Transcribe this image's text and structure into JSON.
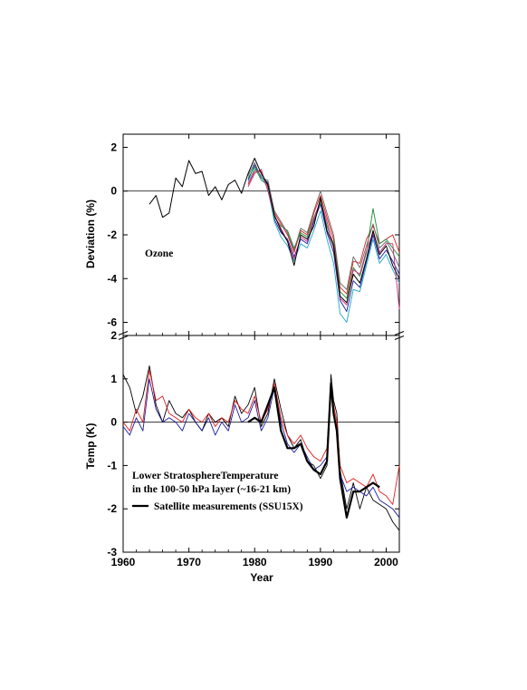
{
  "chart_data": [
    {
      "type": "line",
      "panel": "top",
      "ylabel": "Deviation (%)",
      "annotation": "Ozone",
      "xlim": [
        1960,
        2002
      ],
      "ylim": [
        -6.6,
        2.6
      ],
      "yticks": [
        2,
        0,
        -2,
        -4,
        -6
      ],
      "zero_line": true,
      "series": [
        {
          "color": "#000000",
          "width": 1.0,
          "x": [
            1964,
            1965,
            1966,
            1967,
            1968,
            1969,
            1970,
            1971,
            1972,
            1973,
            1974,
            1975,
            1976,
            1977,
            1978,
            1979,
            1980,
            1981,
            1982,
            1983,
            1984,
            1985,
            1986,
            1987,
            1988,
            1989,
            1990,
            1991,
            1992,
            1993,
            1994,
            1995,
            1996,
            1997,
            1998,
            1999,
            2000,
            2001,
            2002
          ],
          "y": [
            -0.6,
            -0.2,
            -1.2,
            -1.0,
            0.6,
            0.2,
            1.4,
            0.8,
            0.9,
            -0.2,
            0.2,
            -0.4,
            0.3,
            0.5,
            -0.1,
            0.8,
            1.5,
            0.8,
            0.3,
            -1.1,
            -1.8,
            -2.3,
            -3.4,
            -2.0,
            -2.2,
            -1.6,
            -0.3,
            -1.8,
            -2.5,
            -4.8,
            -5.1,
            -3.8,
            -4.2,
            -3.1,
            -1.8,
            -2.9,
            -2.5,
            -3.4,
            -4.0
          ]
        },
        {
          "color": "#1a1aa0",
          "width": 0.9,
          "x": [
            1979,
            1980,
            1981,
            1982,
            1983,
            1984,
            1985,
            1986,
            1987,
            1988,
            1989,
            1990,
            1991,
            1992,
            1993,
            1994,
            1995,
            1996,
            1997,
            1998,
            1999,
            2000,
            2001,
            2002
          ],
          "y": [
            0.5,
            1.2,
            0.6,
            0.4,
            -1.3,
            -1.9,
            -2.2,
            -3.0,
            -2.2,
            -2.4,
            -1.4,
            -0.6,
            -1.9,
            -2.8,
            -5.0,
            -5.5,
            -4.1,
            -4.4,
            -3.2,
            -2.0,
            -3.1,
            -2.7,
            -3.2,
            -3.8
          ]
        },
        {
          "color": "#e21b1b",
          "width": 0.9,
          "x": [
            1979,
            1980,
            1981,
            1982,
            1983,
            1984,
            1985,
            1986,
            1987,
            1988,
            1989,
            1990,
            1991,
            1992,
            1993,
            1994,
            1995,
            1996,
            1997,
            1998,
            1999,
            2000,
            2001,
            2002
          ],
          "y": [
            0.3,
            0.9,
            0.9,
            0.2,
            -1.0,
            -1.5,
            -2.0,
            -2.8,
            -1.8,
            -2.0,
            -1.0,
            -0.2,
            -1.2,
            -2.2,
            -4.4,
            -4.7,
            -3.2,
            -3.3,
            -2.2,
            -1.6,
            -2.4,
            -2.2,
            -2.0,
            -2.8
          ]
        },
        {
          "color": "#1aa6c8",
          "width": 0.9,
          "x": [
            1979,
            1980,
            1981,
            1982,
            1983,
            1984,
            1985,
            1986,
            1987,
            1988,
            1989,
            1990,
            1991,
            1992,
            1993,
            1994,
            1995,
            1996,
            1997,
            1998,
            1999,
            2000,
            2001,
            2002
          ],
          "y": [
            0.4,
            1.0,
            0.7,
            0.1,
            -1.4,
            -2.1,
            -2.5,
            -3.2,
            -2.4,
            -2.6,
            -1.8,
            -0.9,
            -2.2,
            -3.3,
            -5.6,
            -6.0,
            -4.5,
            -4.6,
            -3.4,
            -2.2,
            -3.3,
            -2.9,
            -3.6,
            -4.2
          ]
        },
        {
          "color": "#1e8c32",
          "width": 0.9,
          "x": [
            1979,
            1980,
            1981,
            1982,
            1983,
            1984,
            1985,
            1986,
            1987,
            1988,
            1989,
            1990,
            1991,
            1992,
            1993,
            1994,
            1995,
            1996,
            1997,
            1998,
            1999,
            2000,
            2001,
            2002
          ],
          "y": [
            0.6,
            1.1,
            0.5,
            0.3,
            -1.2,
            -1.6,
            -1.8,
            -2.6,
            -1.9,
            -2.1,
            -1.2,
            -0.5,
            -1.6,
            -2.4,
            -4.6,
            -4.9,
            -3.5,
            -3.9,
            -2.8,
            -0.8,
            -2.4,
            -2.2,
            -2.6,
            -3.0
          ]
        },
        {
          "color": "#d02a7a",
          "width": 0.9,
          "x": [
            1979,
            1980,
            1981,
            1982,
            1983,
            1984,
            1985,
            1986,
            1987,
            1988,
            1989,
            1990,
            1991,
            1992,
            1993,
            1994,
            1995,
            1996,
            1997,
            1998,
            1999,
            2000,
            2001,
            2002
          ],
          "y": [
            0.2,
            0.8,
            1.0,
            0.0,
            -1.1,
            -1.7,
            -2.3,
            -3.1,
            -2.1,
            -2.3,
            -1.3,
            -0.4,
            -1.4,
            -2.6,
            -4.9,
            -5.2,
            -3.6,
            -3.8,
            -2.7,
            -1.9,
            -2.8,
            -2.4,
            -2.4,
            -5.4
          ]
        },
        {
          "color": "#666666",
          "width": 0.9,
          "x": [
            1979,
            1980,
            1981,
            1982,
            1983,
            1984,
            1985,
            1986,
            1987,
            1988,
            1989,
            1990,
            1991,
            1992,
            1993,
            1994,
            1995,
            1996,
            1997,
            1998,
            1999,
            2000,
            2001,
            2002
          ],
          "y": [
            0.7,
            1.3,
            0.6,
            0.5,
            -0.9,
            -1.4,
            -1.9,
            -2.7,
            -1.7,
            -1.9,
            -0.9,
            0.0,
            -1.0,
            -2.0,
            -4.2,
            -4.5,
            -3.0,
            -3.5,
            -2.5,
            -1.5,
            -2.6,
            -2.3,
            -2.8,
            -3.5
          ]
        }
      ]
    },
    {
      "type": "line",
      "panel": "bottom",
      "xlabel": "Year",
      "ylabel": "Temp (K)",
      "annotation_lines": [
        "Lower StratosphereTemperature",
        "in the 100-50 hPa layer (~16-21 km)"
      ],
      "legend_label": "Satellite measurements (SSU15X)",
      "xlim": [
        1960,
        2002
      ],
      "ylim": [
        -3,
        2
      ],
      "yticks": [
        2,
        1,
        0,
        -1,
        -2,
        -3
      ],
      "xticks": [
        1960,
        1970,
        1980,
        1990,
        2000
      ],
      "zero_line": true,
      "series": [
        {
          "color": "#000000",
          "width": 2.2,
          "x": [
            1979,
            1980,
            1981,
            1982,
            1983,
            1984,
            1985,
            1986,
            1987,
            1988,
            1989,
            1990,
            1991,
            1991.6,
            1992,
            1992.5,
            1993,
            1994,
            1995,
            1996,
            1997,
            1998,
            1999
          ],
          "y": [
            0.0,
            0.1,
            0.0,
            0.4,
            0.8,
            -0.2,
            -0.6,
            -0.6,
            -0.5,
            -0.9,
            -1.1,
            -1.2,
            -0.9,
            0.9,
            0.2,
            -0.2,
            -1.3,
            -2.2,
            -1.6,
            -1.6,
            -1.5,
            -1.4,
            -1.5
          ]
        },
        {
          "color": "#000000",
          "width": 0.9,
          "x": [
            1960,
            1961,
            1962,
            1963,
            1964,
            1965,
            1966,
            1967,
            1968,
            1969,
            1970,
            1971,
            1972,
            1973,
            1974,
            1975,
            1976,
            1977,
            1978,
            1979,
            1980,
            1981,
            1982,
            1983,
            1984,
            1985,
            1986,
            1987,
            1988,
            1989,
            1990,
            1991,
            1991.6,
            1992,
            1992.5,
            1993,
            1994,
            1995,
            1996,
            1997,
            1998,
            1999,
            2000,
            2001,
            2002
          ],
          "y": [
            1.1,
            0.8,
            0.2,
            0.6,
            1.3,
            0.4,
            0.0,
            0.5,
            0.2,
            0.1,
            0.3,
            0.0,
            -0.2,
            0.2,
            0.0,
            0.1,
            -0.1,
            0.6,
            0.2,
            0.4,
            0.8,
            -0.1,
            0.2,
            1.0,
            0.3,
            -0.3,
            -0.6,
            -0.4,
            -0.9,
            -1.0,
            -1.3,
            -1.0,
            1.1,
            0.5,
            0.2,
            -1.1,
            -2.0,
            -1.4,
            -2.0,
            -1.5,
            -1.8,
            -1.9,
            -2.0,
            -2.3,
            -2.5
          ]
        },
        {
          "color": "#1a1aa0",
          "width": 0.9,
          "x": [
            1960,
            1961,
            1962,
            1963,
            1964,
            1965,
            1966,
            1967,
            1968,
            1969,
            1970,
            1971,
            1972,
            1973,
            1974,
            1975,
            1976,
            1977,
            1978,
            1979,
            1980,
            1981,
            1982,
            1983,
            1984,
            1985,
            1986,
            1987,
            1988,
            1989,
            1990,
            1991,
            1991.6,
            1992,
            1992.5,
            1993,
            1994,
            1995,
            1996,
            1997,
            1998,
            1999,
            2000,
            2001,
            2002
          ],
          "y": [
            -0.1,
            -0.3,
            0.1,
            -0.2,
            1.0,
            0.3,
            0.0,
            0.1,
            0.0,
            -0.2,
            0.2,
            0.0,
            -0.2,
            0.1,
            -0.3,
            0.0,
            -0.2,
            0.4,
            0.0,
            0.1,
            0.5,
            -0.2,
            0.1,
            0.8,
            0.0,
            -0.5,
            -0.7,
            -0.5,
            -0.8,
            -1.1,
            -1.0,
            -0.8,
            0.8,
            0.3,
            -0.3,
            -1.2,
            -1.6,
            -1.5,
            -1.6,
            -1.7,
            -1.5,
            -1.8,
            -1.9,
            -2.0,
            -2.2
          ]
        },
        {
          "color": "#e21b1b",
          "width": 0.9,
          "x": [
            1960,
            1961,
            1962,
            1963,
            1964,
            1965,
            1966,
            1967,
            1968,
            1969,
            1970,
            1971,
            1972,
            1973,
            1974,
            1975,
            1976,
            1977,
            1978,
            1979,
            1980,
            1981,
            1982,
            1983,
            1984,
            1985,
            1986,
            1987,
            1988,
            1989,
            1990,
            1991,
            1991.6,
            1992,
            1992.5,
            1993,
            1994,
            1995,
            1996,
            1997,
            1998,
            1999,
            2000,
            2001,
            2002
          ],
          "y": [
            0.0,
            -0.2,
            0.3,
            0.0,
            1.2,
            0.5,
            0.6,
            0.2,
            0.1,
            0.0,
            0.3,
            0.1,
            0.0,
            0.2,
            -0.1,
            0.1,
            0.0,
            0.5,
            0.3,
            0.2,
            0.6,
            0.0,
            0.3,
            0.9,
            0.1,
            -0.3,
            -0.5,
            -0.3,
            -0.6,
            -0.8,
            -0.9,
            -0.6,
            0.9,
            0.4,
            0.0,
            -1.0,
            -1.4,
            -1.3,
            -1.4,
            -1.5,
            -1.2,
            -1.6,
            -1.7,
            -1.9,
            -1.0
          ]
        }
      ]
    }
  ]
}
